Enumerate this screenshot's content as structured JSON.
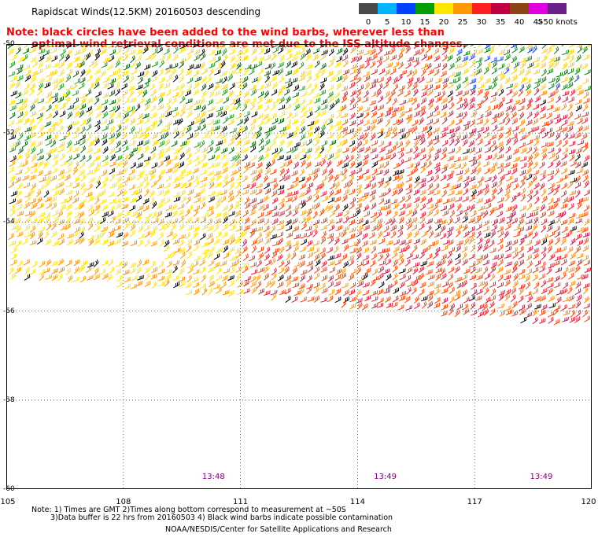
{
  "header": {
    "title": "Rapidscat Winds(12.5KM) 20160503 descending",
    "note_line1": "Note: black circles have been added to the wind barbs, wherever less than",
    "note_line2": "optimal wind retrieval conditions are met due to the ISS altitude changes."
  },
  "color_scale": {
    "labels": [
      "0",
      "5",
      "10",
      "15",
      "20",
      "25",
      "30",
      "35",
      "40",
      "45",
      ">50 knots"
    ],
    "colors": [
      "#4a4a4a",
      "#00b4ff",
      "#0040ff",
      "#00a000",
      "#ffe600",
      "#ff9900",
      "#ff2020",
      "#c00040",
      "#8b4513",
      "#e000e0",
      "#6a1f8a"
    ]
  },
  "map": {
    "lat_labels": [
      "-50",
      "-52",
      "-54",
      "-56",
      "-58",
      "-60"
    ],
    "lon_labels": [
      "105",
      "108",
      "111",
      "114",
      "117",
      "120"
    ],
    "lat_range": [
      -60,
      -50
    ],
    "lon_range": [
      105,
      120
    ],
    "grid": true,
    "times": [
      "13:48",
      "13:49",
      "13:49"
    ],
    "time_lons": [
      110.3,
      114.7,
      118.7
    ]
  },
  "footer": {
    "line1": "Note: 1) Times are GMT 2)Times along bottom correspond to measurement at ~50S",
    "line2": "3)Data buffer is 22 hrs from 20160503 4) Black wind barbs indicate possible contamination",
    "line3": "NOAA/NESDIS/Center for Satellite Applications and Research"
  }
}
